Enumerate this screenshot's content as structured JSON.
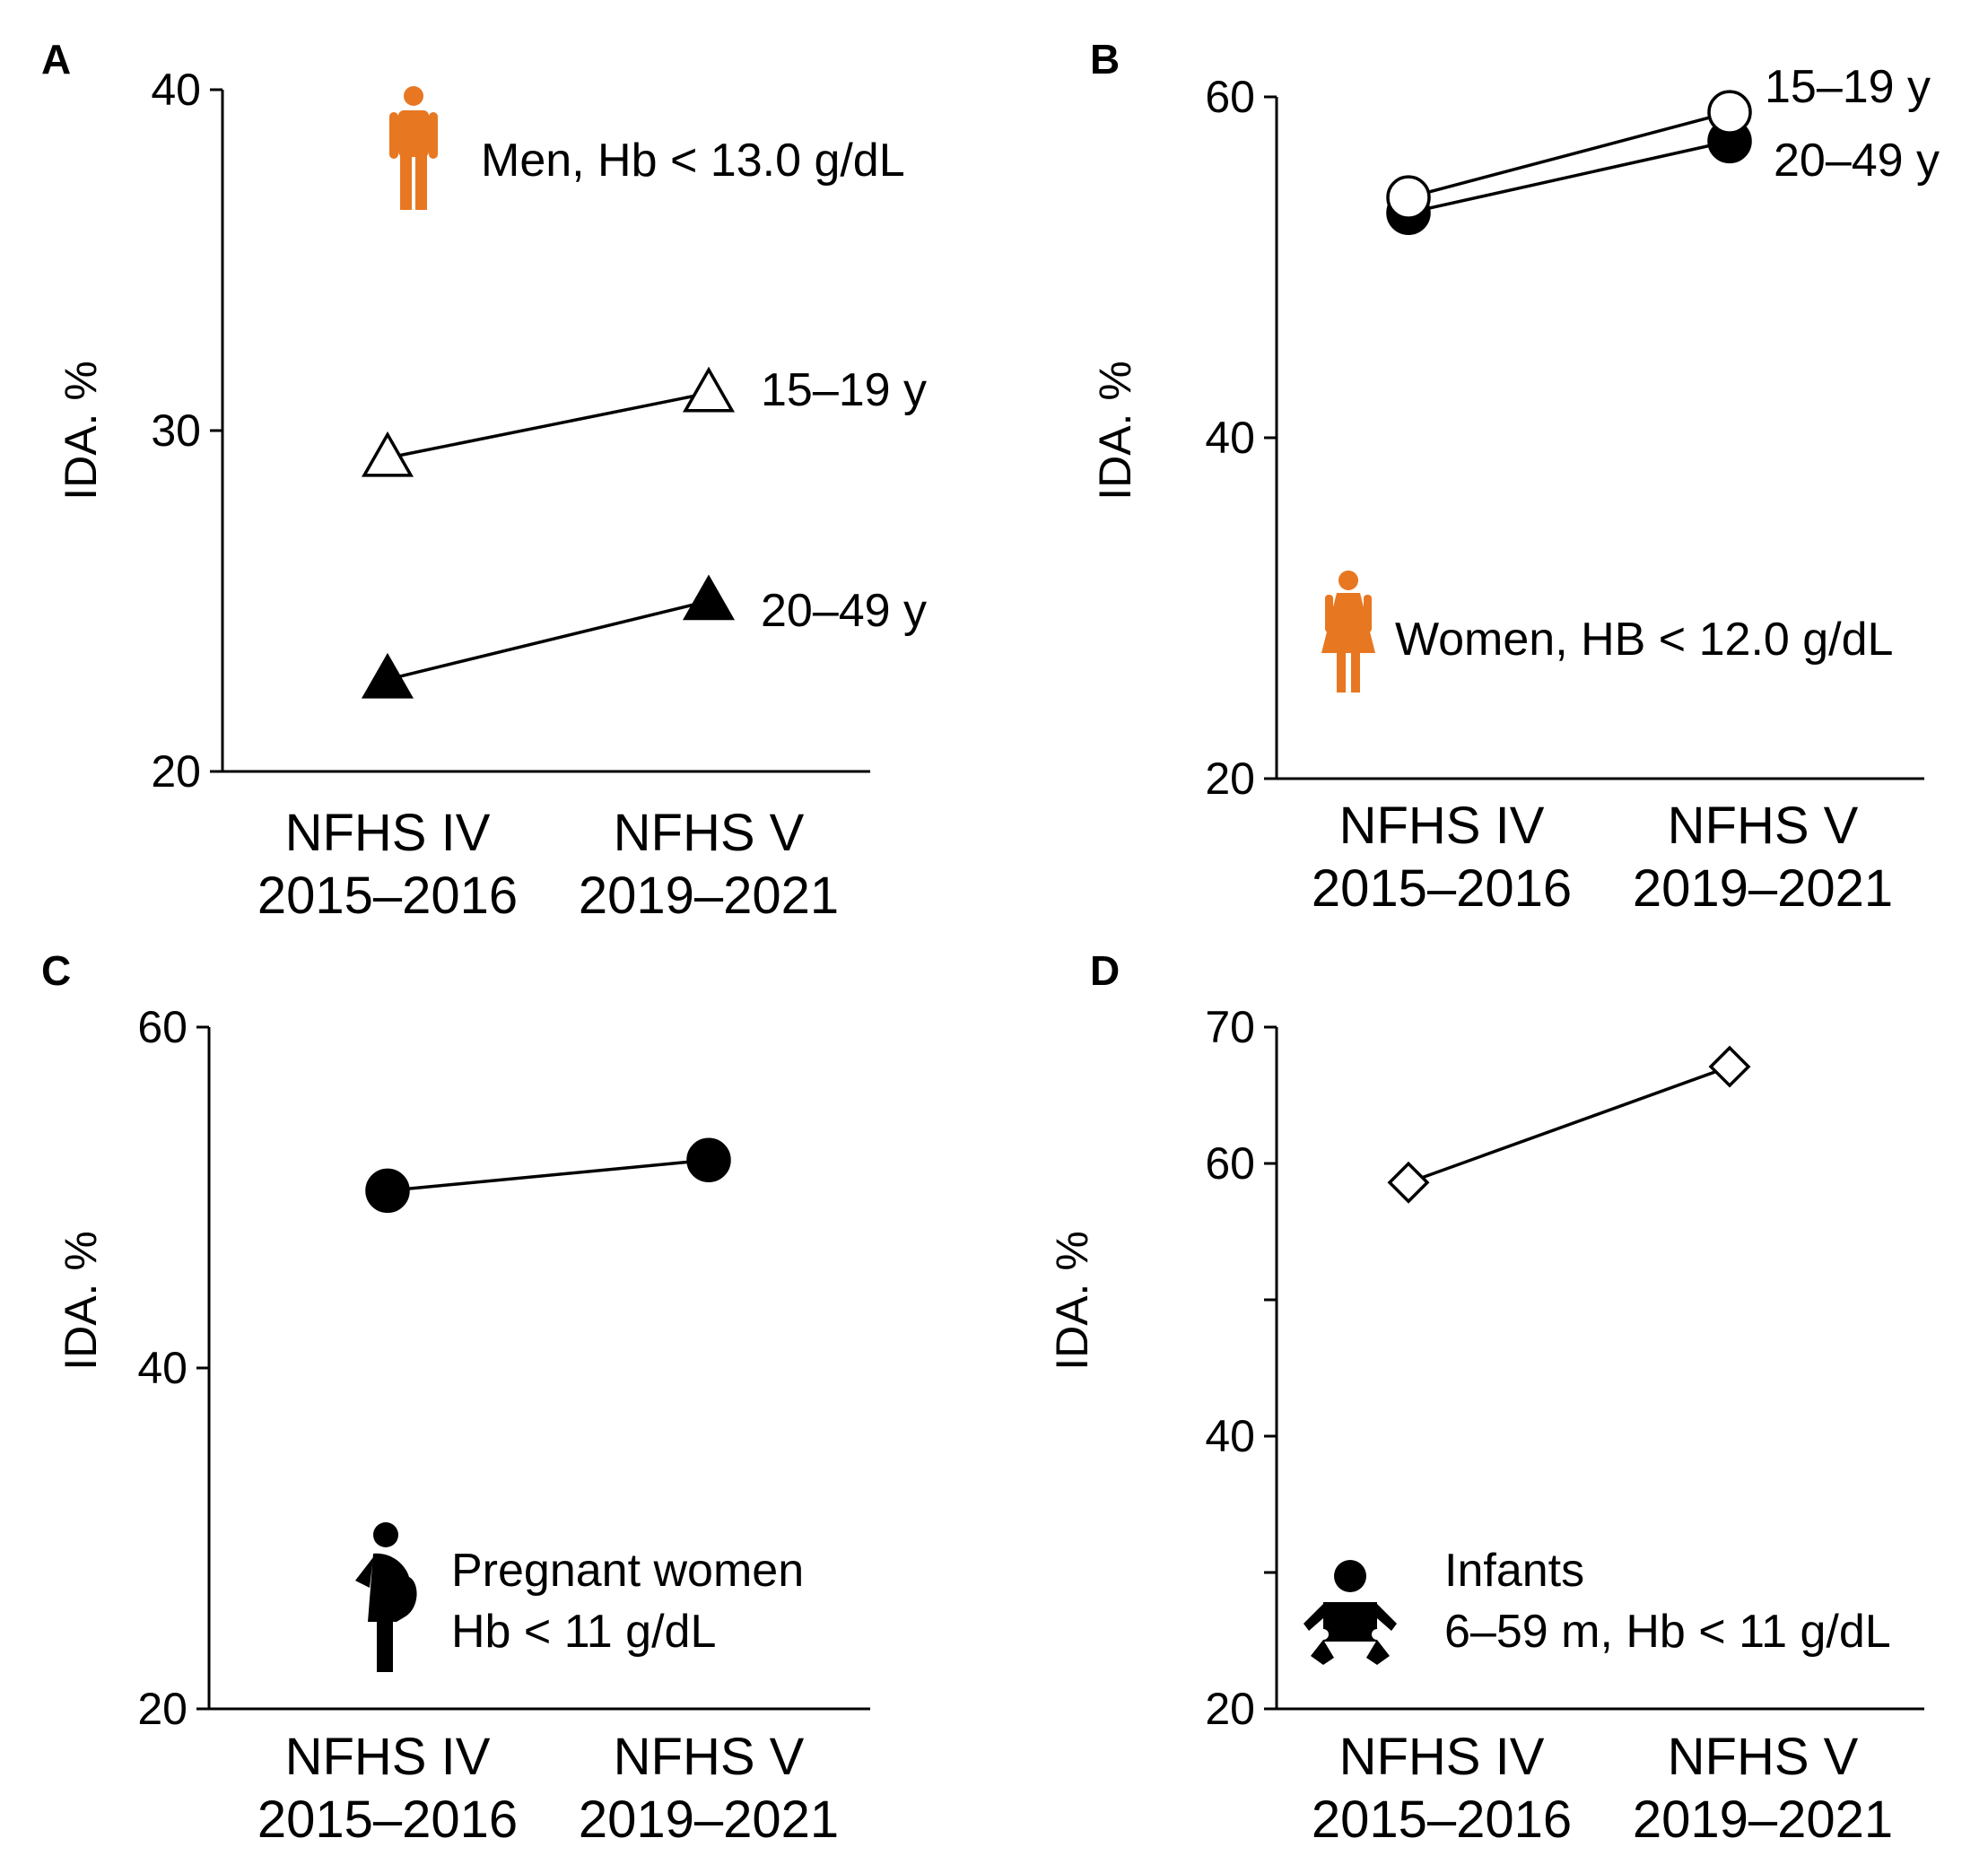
{
  "colors": {
    "accent": "#E87722",
    "ink": "#000000",
    "background": "#FFFFFF"
  },
  "chart_data": [
    {
      "panel": "A",
      "type": "line",
      "ylabel": "IDA. %",
      "ylim": [
        20,
        40
      ],
      "yticks": [
        20,
        30,
        40
      ],
      "yticks_labeled": [
        20,
        30,
        40
      ],
      "categories": [
        {
          "line1": "NFHS IV",
          "line2": "2015–2016"
        },
        {
          "line1": "NFHS V",
          "line2": "2019–2021"
        }
      ],
      "annotation": {
        "lines": [
          "Men, Hb < 13.0 g/dL"
        ],
        "icon": "man-icon",
        "icon_color": "#E87722"
      },
      "series": [
        {
          "name": "15–19 y",
          "marker": "triangle-open",
          "values": [
            29.2,
            31.1
          ]
        },
        {
          "name": "20–49 y",
          "marker": "triangle-filled",
          "values": [
            22.7,
            25.0
          ]
        }
      ]
    },
    {
      "panel": "B",
      "type": "line",
      "ylabel": "IDA. %",
      "ylim": [
        20,
        60
      ],
      "yticks": [
        20,
        40,
        60
      ],
      "yticks_labeled": [
        20,
        40,
        60
      ],
      "categories": [
        {
          "line1": "NFHS IV",
          "line2": "2015–2016"
        },
        {
          "line1": "NFHS V",
          "line2": "2019–2021"
        }
      ],
      "annotation": {
        "lines": [
          "Women, HB < 12.0 g/dL"
        ],
        "icon": "woman-icon",
        "icon_color": "#E87722"
      },
      "series": [
        {
          "name": "15–19 y",
          "marker": "circle-open",
          "values": [
            54.1,
            59.1
          ]
        },
        {
          "name": "20–49 y",
          "marker": "circle-filled",
          "values": [
            53.2,
            57.4
          ]
        }
      ]
    },
    {
      "panel": "C",
      "type": "line",
      "ylabel": "IDA. %",
      "ylim": [
        20,
        60
      ],
      "yticks": [
        20,
        40,
        60
      ],
      "yticks_labeled": [
        20,
        40,
        60
      ],
      "categories": [
        {
          "line1": "NFHS IV",
          "line2": "2015–2016"
        },
        {
          "line1": "NFHS V",
          "line2": "2019–2021"
        }
      ],
      "annotation": {
        "lines": [
          "Pregnant women",
          "Hb < 11 g/dL"
        ],
        "icon": "pregnant-woman-icon",
        "icon_color": "#000000"
      },
      "series": [
        {
          "name": "Pregnant women",
          "marker": "circle-filled",
          "values": [
            50.4,
            52.2
          ]
        }
      ]
    },
    {
      "panel": "D",
      "type": "line",
      "ylabel": "IDA. %",
      "ylim": [
        20,
        70
      ],
      "yticks": [
        20,
        30,
        40,
        50,
        60,
        70
      ],
      "yticks_labeled": [
        20,
        40,
        60,
        70
      ],
      "categories": [
        {
          "line1": "NFHS IV",
          "line2": "2015–2016"
        },
        {
          "line1": "NFHS V",
          "line2": "2019–2021"
        }
      ],
      "annotation": {
        "lines": [
          "Infants",
          "6–59 m, Hb < 11 g/dL"
        ],
        "icon": "infant-icon",
        "icon_color": "#000000"
      },
      "series": [
        {
          "name": "Infants",
          "marker": "diamond-open",
          "values": [
            58.6,
            67.1
          ]
        }
      ]
    }
  ]
}
